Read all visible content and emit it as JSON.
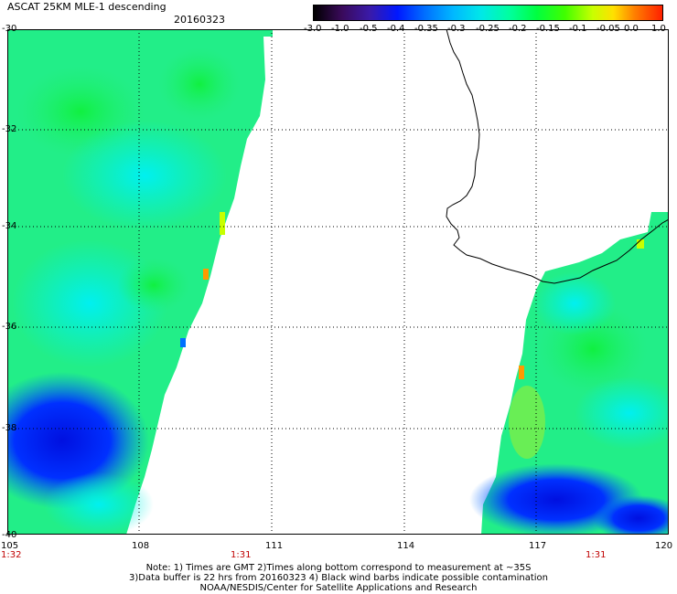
{
  "header": {
    "title": "ASCAT 25KM MLE-1 descending",
    "date": "20160323"
  },
  "colorbar": {
    "labels": [
      "-3.0",
      "-1.0",
      "-0.5",
      "-0.4",
      "-0.35",
      "-0.3",
      "-0.25",
      "-0.2",
      "-0.15",
      "-0.1",
      "-0.05",
      "0.0",
      "1.0"
    ]
  },
  "map": {
    "lat_labels": [
      "-30",
      "-32",
      "-34",
      "-36",
      "-38",
      "-40"
    ],
    "lon_labels": [
      "105",
      "108",
      "111",
      "114",
      "117",
      "120"
    ],
    "time_labels": [
      "1:32",
      "1:31",
      "1:31"
    ],
    "extent": {
      "lon": [
        105,
        120
      ],
      "lat": [
        -40,
        -30
      ]
    }
  },
  "note": {
    "line1": "Note: 1) Times are GMT 2)Times along bottom correspond to measurement at ~35S",
    "line2": "3)Data buffer is 22 hrs from 20160323 4) Black wind barbs indicate possible contamination",
    "line3": "NOAA/NESDIS/Center for Satellite Applications and Research"
  }
}
